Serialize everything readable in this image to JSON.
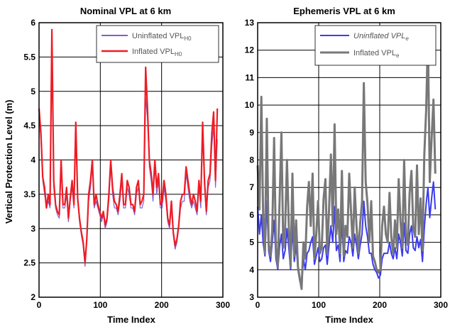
{
  "chart_data": [
    {
      "type": "line",
      "title": "Nominal VPL at 6 km",
      "xlabel": "Time Index",
      "ylabel": "Vertical Protection Level (m)",
      "xlim": [
        0,
        300
      ],
      "ylim": [
        2,
        6
      ],
      "xticks": [
        "0",
        "100",
        "200",
        "300"
      ],
      "yticks": [
        "2",
        "2.5",
        "3",
        "3.5",
        "4",
        "4.5",
        "5",
        "5.5",
        "6"
      ],
      "grid": true,
      "legend_position": "top-right",
      "series": [
        {
          "name": "Uninflated VPL",
          "name_subscript": "H0",
          "color": "#7f5fd0",
          "x": [
            0,
            3,
            6,
            9,
            12,
            15,
            18,
            21,
            24,
            27,
            30,
            33,
            36,
            39,
            42,
            45,
            48,
            51,
            54,
            57,
            60,
            63,
            66,
            69,
            72,
            75,
            78,
            81,
            84,
            87,
            90,
            93,
            96,
            99,
            102,
            105,
            108,
            111,
            114,
            117,
            120,
            123,
            126,
            129,
            132,
            135,
            138,
            141,
            144,
            147,
            150,
            153,
            156,
            159,
            162,
            165,
            168,
            171,
            174,
            177,
            180,
            183,
            186,
            189,
            192,
            195,
            198,
            201,
            204,
            207,
            210,
            213,
            216,
            219,
            222,
            225,
            228,
            231,
            234,
            237,
            240,
            243,
            246,
            249,
            252,
            255,
            258,
            261,
            264,
            267,
            270,
            273,
            276,
            279,
            282,
            285,
            288,
            291
          ],
          "y": [
            4.65,
            4.3,
            3.7,
            3.5,
            3.3,
            3.4,
            3.3,
            5.75,
            3.6,
            3.3,
            3.2,
            3.15,
            3.9,
            3.3,
            3.3,
            3.5,
            3.1,
            3.4,
            3.6,
            3.3,
            4.35,
            3.4,
            3.1,
            2.9,
            2.75,
            2.45,
            2.8,
            3.4,
            3.6,
            3.9,
            3.3,
            3.4,
            3.3,
            3.2,
            3.1,
            3.2,
            3.0,
            3.1,
            3.4,
            3.9,
            3.5,
            3.3,
            3.3,
            3.2,
            3.4,
            3.7,
            3.3,
            3.3,
            3.6,
            3.5,
            3.3,
            3.3,
            3.2,
            3.5,
            3.6,
            3.3,
            3.3,
            3.4,
            4.9,
            4.6,
            3.9,
            3.7,
            3.4,
            3.9,
            3.5,
            3.7,
            3.3,
            3.3,
            3.6,
            3.4,
            3.1,
            3.0,
            3.3,
            2.9,
            2.7,
            2.8,
            3.0,
            3.3,
            3.4,
            3.4,
            3.8,
            3.6,
            3.4,
            3.3,
            3.4,
            3.3,
            3.2,
            3.6,
            3.3,
            4.4,
            3.6,
            3.2,
            3.6,
            3.7,
            4.2,
            4.5,
            3.6,
            4.3
          ]
        },
        {
          "name": "Inflated VPL",
          "name_subscript": "H0",
          "color": "#ee1c25",
          "x": [
            0,
            3,
            6,
            9,
            12,
            15,
            18,
            21,
            24,
            27,
            30,
            33,
            36,
            39,
            42,
            45,
            48,
            51,
            54,
            57,
            60,
            63,
            66,
            69,
            72,
            75,
            78,
            81,
            84,
            87,
            90,
            93,
            96,
            99,
            102,
            105,
            108,
            111,
            114,
            117,
            120,
            123,
            126,
            129,
            132,
            135,
            138,
            141,
            144,
            147,
            150,
            153,
            156,
            159,
            162,
            165,
            168,
            171,
            174,
            177,
            180,
            183,
            186,
            189,
            192,
            195,
            198,
            201,
            204,
            207,
            210,
            213,
            216,
            219,
            222,
            225,
            228,
            231,
            234,
            237,
            240,
            243,
            246,
            249,
            252,
            255,
            258,
            261,
            264,
            267,
            270,
            273,
            276,
            279,
            282,
            285,
            288,
            291
          ],
          "y": [
            4.75,
            4.4,
            3.75,
            3.6,
            3.3,
            3.5,
            3.35,
            5.9,
            3.7,
            3.35,
            3.25,
            3.2,
            4.0,
            3.35,
            3.35,
            3.6,
            3.15,
            3.45,
            3.7,
            3.35,
            4.55,
            3.45,
            3.15,
            2.95,
            2.8,
            2.5,
            2.85,
            3.5,
            3.7,
            4.0,
            3.35,
            3.5,
            3.35,
            3.25,
            3.15,
            3.25,
            3.05,
            3.15,
            3.5,
            4.0,
            3.6,
            3.4,
            3.35,
            3.25,
            3.5,
            3.8,
            3.35,
            3.35,
            3.7,
            3.6,
            3.35,
            3.35,
            3.25,
            3.6,
            3.7,
            3.35,
            3.4,
            3.5,
            5.35,
            4.75,
            4.0,
            3.8,
            3.5,
            4.0,
            3.6,
            3.8,
            3.35,
            3.4,
            3.7,
            3.5,
            3.15,
            3.05,
            3.4,
            2.95,
            2.75,
            2.85,
            3.05,
            3.4,
            3.5,
            3.5,
            3.9,
            3.7,
            3.5,
            3.35,
            3.5,
            3.4,
            3.25,
            3.7,
            3.4,
            4.55,
            3.7,
            3.25,
            3.7,
            3.8,
            4.4,
            4.7,
            3.7,
            4.75
          ]
        }
      ]
    },
    {
      "type": "line",
      "title": "Ephemeris VPL at 6 km",
      "xlabel": "Time Index",
      "ylabel": "",
      "xlim": [
        0,
        300
      ],
      "ylim": [
        3,
        13
      ],
      "xticks": [
        "0",
        "100",
        "200",
        "300"
      ],
      "yticks": [
        "3",
        "4",
        "5",
        "6",
        "7",
        "8",
        "9",
        "10",
        "11",
        "12",
        "13"
      ],
      "grid": true,
      "legend_position": "top-right",
      "series": [
        {
          "name": "Uninflated VPL",
          "name_subscript": "e",
          "color": "#3b3bf0",
          "x": [
            0,
            3,
            6,
            9,
            12,
            15,
            18,
            21,
            24,
            27,
            30,
            33,
            36,
            39,
            42,
            45,
            48,
            51,
            54,
            57,
            60,
            63,
            66,
            69,
            72,
            75,
            78,
            81,
            84,
            87,
            90,
            93,
            96,
            99,
            102,
            105,
            108,
            111,
            114,
            117,
            120,
            123,
            126,
            129,
            132,
            135,
            138,
            141,
            144,
            147,
            150,
            153,
            156,
            159,
            162,
            165,
            168,
            171,
            174,
            177,
            180,
            183,
            186,
            189,
            192,
            195,
            198,
            201,
            204,
            207,
            210,
            213,
            216,
            219,
            222,
            225,
            228,
            231,
            234,
            237,
            240,
            243,
            246,
            249,
            252,
            255,
            258,
            261,
            264,
            267,
            270,
            273,
            276,
            279,
            282,
            285,
            288,
            291
          ],
          "y": [
            6.3,
            5.3,
            6.0,
            5.0,
            4.5,
            6.5,
            4.7,
            4.3,
            5.0,
            5.8,
            4.4,
            4.0,
            4.9,
            5.3,
            4.4,
            4.7,
            5.5,
            4.8,
            4.0,
            5.6,
            4.3,
            4.9,
            4.0,
            3.6,
            3.4,
            4.4,
            4.0,
            4.6,
            4.7,
            5.0,
            5.2,
            4.2,
            4.5,
            4.8,
            4.3,
            4.4,
            4.8,
            4.9,
            4.2,
            4.9,
            5.6,
            5.0,
            6.3,
            4.7,
            4.9,
            4.3,
            5.8,
            4.3,
            4.7,
            4.6,
            5.2,
            5.0,
            4.5,
            5.3,
            4.9,
            4.4,
            4.9,
            5.3,
            6.5,
            5.6,
            5.2,
            4.6,
            4.6,
            4.2,
            4.0,
            3.9,
            3.7,
            3.8,
            4.4,
            4.6,
            4.6,
            4.6,
            5.0,
            4.6,
            4.4,
            4.8,
            4.4,
            5.3,
            5.0,
            4.5,
            5.7,
            4.7,
            4.6,
            5.3,
            5.6,
            4.8,
            4.7,
            5.2,
            4.8,
            5.1,
            4.3,
            5.5,
            6.4,
            7.0,
            5.9,
            6.6,
            7.2,
            6.2
          ]
        },
        {
          "name": "Inflated VPL",
          "name_subscript": "e",
          "color": "#787878",
          "x": [
            0,
            3,
            6,
            9,
            12,
            15,
            18,
            21,
            24,
            27,
            30,
            33,
            36,
            39,
            42,
            45,
            48,
            51,
            54,
            57,
            60,
            63,
            66,
            69,
            72,
            75,
            78,
            81,
            84,
            87,
            90,
            93,
            96,
            99,
            102,
            105,
            108,
            111,
            114,
            117,
            120,
            123,
            126,
            129,
            132,
            135,
            138,
            141,
            144,
            147,
            150,
            153,
            156,
            159,
            162,
            165,
            168,
            171,
            174,
            177,
            180,
            183,
            186,
            189,
            192,
            195,
            198,
            201,
            204,
            207,
            210,
            213,
            216,
            219,
            222,
            225,
            228,
            231,
            234,
            237,
            240,
            243,
            246,
            249,
            252,
            255,
            258,
            261,
            264,
            267,
            270,
            273,
            276,
            279,
            282,
            285,
            288,
            291
          ],
          "y": [
            7.8,
            6.2,
            10.3,
            6.0,
            4.6,
            9.5,
            4.9,
            4.5,
            5.5,
            8.8,
            4.8,
            4.1,
            6.6,
            9.0,
            4.8,
            5.5,
            8.0,
            5.6,
            4.1,
            7.5,
            4.5,
            5.8,
            4.1,
            3.7,
            3.3,
            5.0,
            4.4,
            6.3,
            7.2,
            5.6,
            7.5,
            4.4,
            5.3,
            6.5,
            4.6,
            4.8,
            6.6,
            7.3,
            4.6,
            6.2,
            8.2,
            5.6,
            9.3,
            5.3,
            6.2,
            4.6,
            7.6,
            4.5,
            5.6,
            5.2,
            7.5,
            6.1,
            4.8,
            7.0,
            5.6,
            4.6,
            5.7,
            6.5,
            10.8,
            7.2,
            6.4,
            5.0,
            6.5,
            4.5,
            4.3,
            4.0,
            3.9,
            4.0,
            5.6,
            6.3,
            5.3,
            5.0,
            6.8,
            5.2,
            4.6,
            5.8,
            4.8,
            7.3,
            5.8,
            4.8,
            8.0,
            5.3,
            4.9,
            6.8,
            7.6,
            5.5,
            5.2,
            7.8,
            5.3,
            6.6,
            4.7,
            8.2,
            9.8,
            12.5,
            7.2,
            8.8,
            10.2,
            7.5
          ]
        }
      ]
    }
  ]
}
